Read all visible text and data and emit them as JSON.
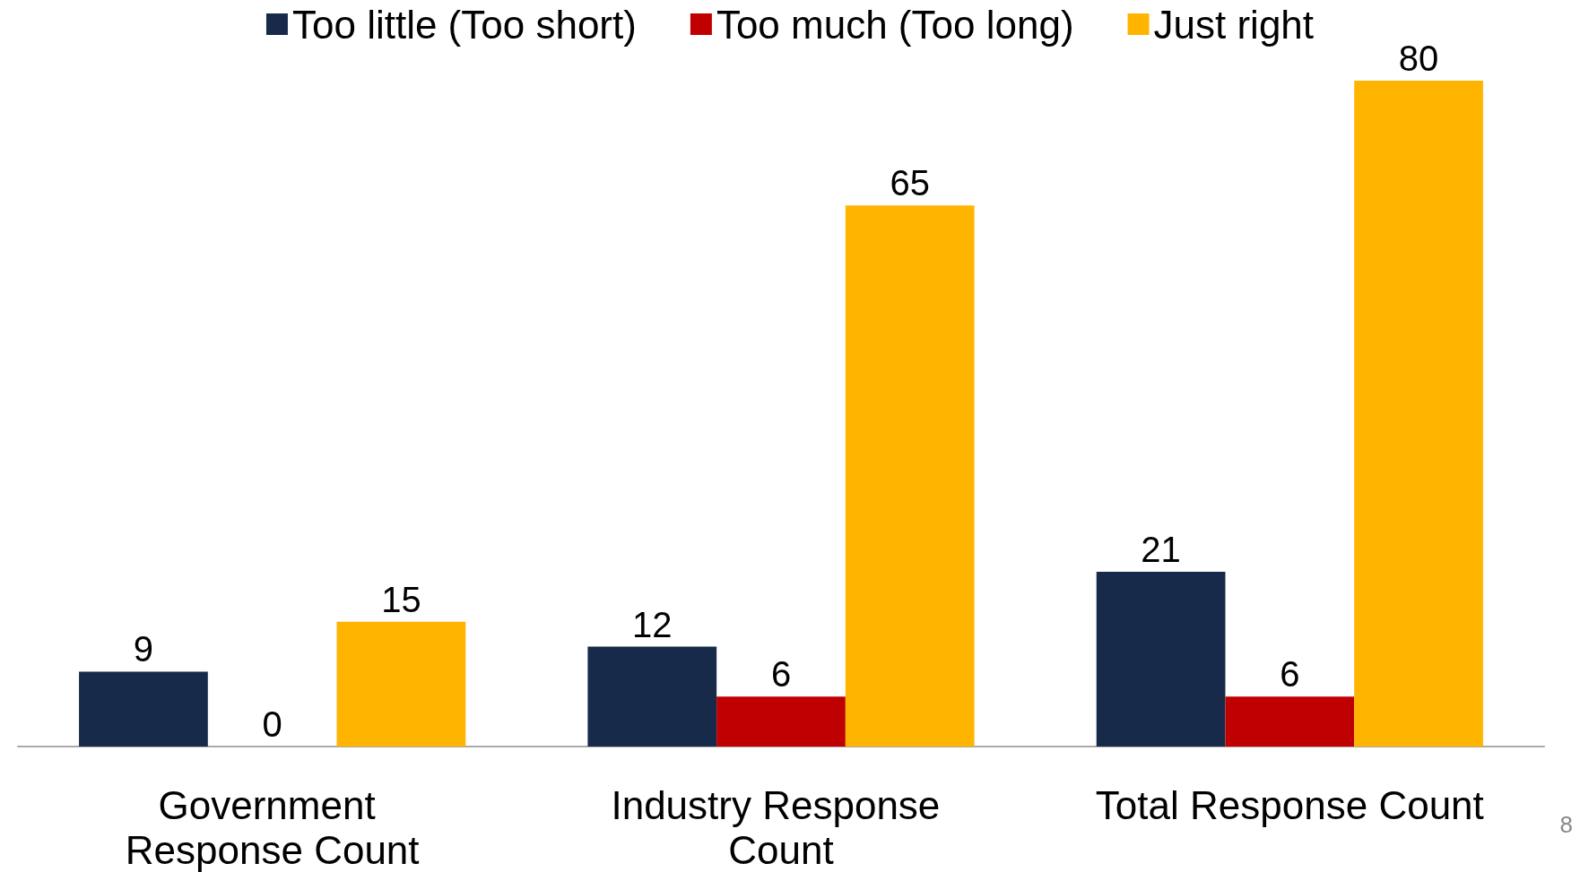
{
  "chart_data": {
    "type": "bar",
    "categories": [
      "Government Response Count",
      "Industry Response Count",
      "Total Response Count"
    ],
    "series": [
      {
        "name": "Too little (Too short)",
        "color": "#172a4a",
        "values": [
          9,
          12,
          21
        ]
      },
      {
        "name": "Too much (Too long)",
        "color": "#c00000",
        "values": [
          0,
          6,
          6
        ]
      },
      {
        "name": "Just right",
        "color": "#ffb400",
        "values": [
          15,
          65,
          80
        ]
      }
    ],
    "data_labels": true,
    "legend": "top",
    "annotations": [
      "8"
    ]
  }
}
